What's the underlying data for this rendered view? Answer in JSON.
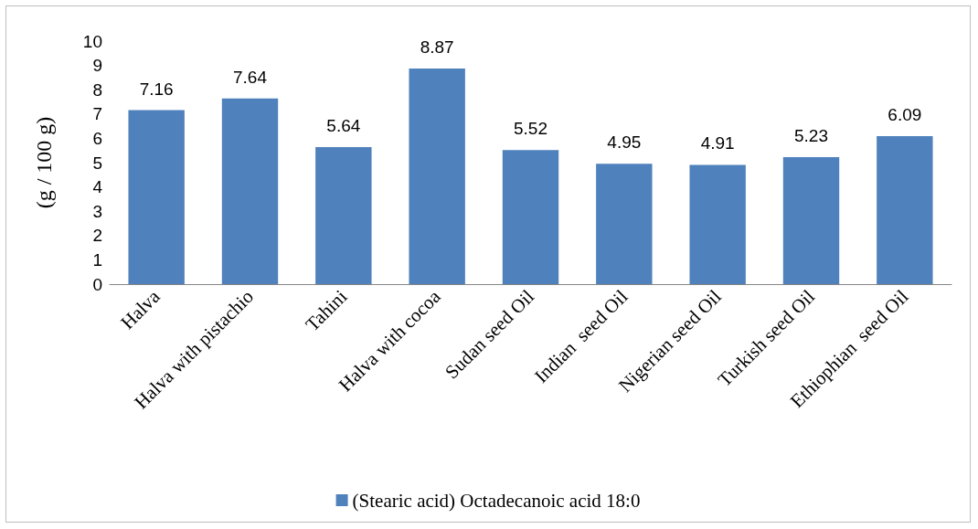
{
  "chart_data": {
    "type": "bar",
    "ylabel": "(g / 100 g)",
    "categories": [
      "Halva",
      "Halva with pistachio",
      "Tahini",
      "Halva with cocoa",
      "Sudan seed Oil",
      "Indian  seed Oil",
      "Nigerian seed Oil",
      "Turkish seed Oil",
      "Ethiophian  seed Oil"
    ],
    "series": [
      {
        "name": "(Stearic acid) Octadecanoic acid 18:0",
        "color": "#4f81bd",
        "values": [
          7.16,
          7.64,
          5.64,
          8.87,
          5.52,
          4.95,
          4.91,
          5.23,
          6.09
        ]
      }
    ],
    "ylim": [
      0,
      10
    ],
    "yticks": [
      0,
      1,
      2,
      3,
      4,
      5,
      6,
      7,
      8,
      9,
      10
    ],
    "grid": false,
    "legend": "bottom",
    "data_labels": true
  }
}
